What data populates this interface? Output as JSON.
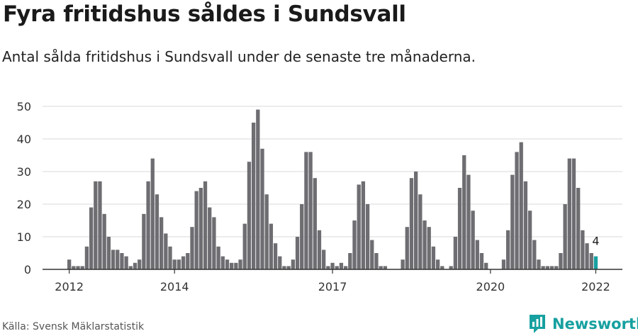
{
  "header": {
    "title": "Fyra fritidshus såldes i Sundsvall",
    "subtitle": "Antal sålda fritidshus i Sundsvall under de senaste tre månaderna."
  },
  "footer": {
    "source": "Källa: Svensk Mäklarstatistik",
    "brand": "Newsworthy",
    "brand_icon": "newsworthy-logo-icon"
  },
  "colors": {
    "bar": "#6e6e72",
    "highlight": "#17a0a0",
    "grid": "#d9d9d9",
    "axis": "#333333",
    "brand": "#17a0a0"
  },
  "chart_data": {
    "type": "bar",
    "x_start": "2012-01",
    "x_end": "2022-01",
    "x_tick_labels": [
      "2012",
      "2014",
      "2017",
      "2020",
      "2022"
    ],
    "y_ticks": [
      0,
      10,
      20,
      30,
      40,
      50
    ],
    "ylim": [
      0,
      50
    ],
    "grid": true,
    "highlight_label": "4",
    "values": [
      3,
      1,
      1,
      1,
      7,
      19,
      27,
      27,
      17,
      10,
      6,
      6,
      5,
      4,
      1,
      2,
      3,
      17,
      27,
      34,
      23,
      16,
      11,
      7,
      3,
      3,
      4,
      5,
      13,
      24,
      25,
      27,
      19,
      16,
      7,
      4,
      3,
      2,
      2,
      3,
      14,
      33,
      45,
      49,
      37,
      23,
      14,
      8,
      4,
      1,
      1,
      3,
      10,
      20,
      36,
      36,
      28,
      12,
      6,
      1,
      2,
      1,
      2,
      1,
      5,
      15,
      26,
      27,
      20,
      9,
      5,
      1,
      1,
      0,
      0,
      0,
      3,
      13,
      28,
      30,
      23,
      15,
      13,
      7,
      3,
      1,
      0,
      1,
      10,
      25,
      35,
      29,
      18,
      9,
      5,
      2,
      0,
      0,
      0,
      3,
      12,
      29,
      36,
      39,
      27,
      18,
      9,
      3,
      1,
      1,
      1,
      1,
      5,
      20,
      34,
      34,
      25,
      12,
      8,
      5,
      4
    ]
  }
}
